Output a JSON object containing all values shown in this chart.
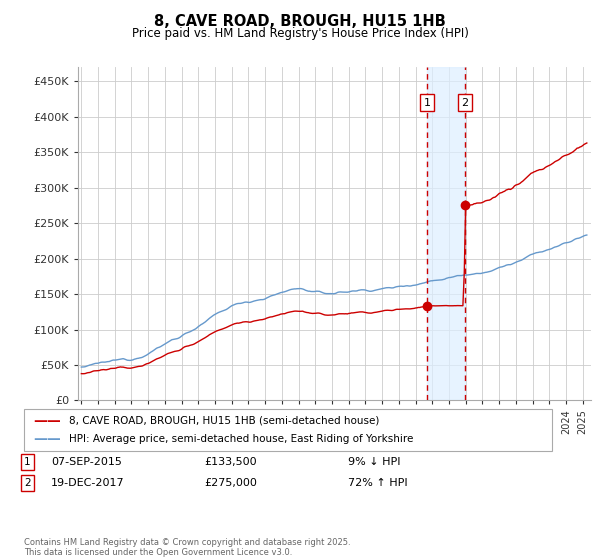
{
  "title": "8, CAVE ROAD, BROUGH, HU15 1HB",
  "subtitle": "Price paid vs. HM Land Registry's House Price Index (HPI)",
  "ylabel_ticks": [
    "£0",
    "£50K",
    "£100K",
    "£150K",
    "£200K",
    "£250K",
    "£300K",
    "£350K",
    "£400K",
    "£450K"
  ],
  "ytick_values": [
    0,
    50000,
    100000,
    150000,
    200000,
    250000,
    300000,
    350000,
    400000,
    450000
  ],
  "ylim": [
    0,
    470000
  ],
  "xlim_start": 1994.8,
  "xlim_end": 2025.5,
  "red_line_color": "#cc0000",
  "blue_line_color": "#6699cc",
  "marker1_date": 2015.68,
  "marker2_date": 2017.96,
  "marker1_price": 133500,
  "marker2_price": 275000,
  "transaction1_date": "07-SEP-2015",
  "transaction1_price": "£133,500",
  "transaction1_hpi": "9% ↓ HPI",
  "transaction2_date": "19-DEC-2017",
  "transaction2_price": "£275,000",
  "transaction2_hpi": "72% ↑ HPI",
  "legend1": "8, CAVE ROAD, BROUGH, HU15 1HB (semi-detached house)",
  "legend2": "HPI: Average price, semi-detached house, East Riding of Yorkshire",
  "footnote": "Contains HM Land Registry data © Crown copyright and database right 2025.\nThis data is licensed under the Open Government Licence v3.0.",
  "background_color": "#ffffff",
  "plot_bg_color": "#ffffff",
  "grid_color": "#cccccc",
  "span_color": "#ddeeff"
}
